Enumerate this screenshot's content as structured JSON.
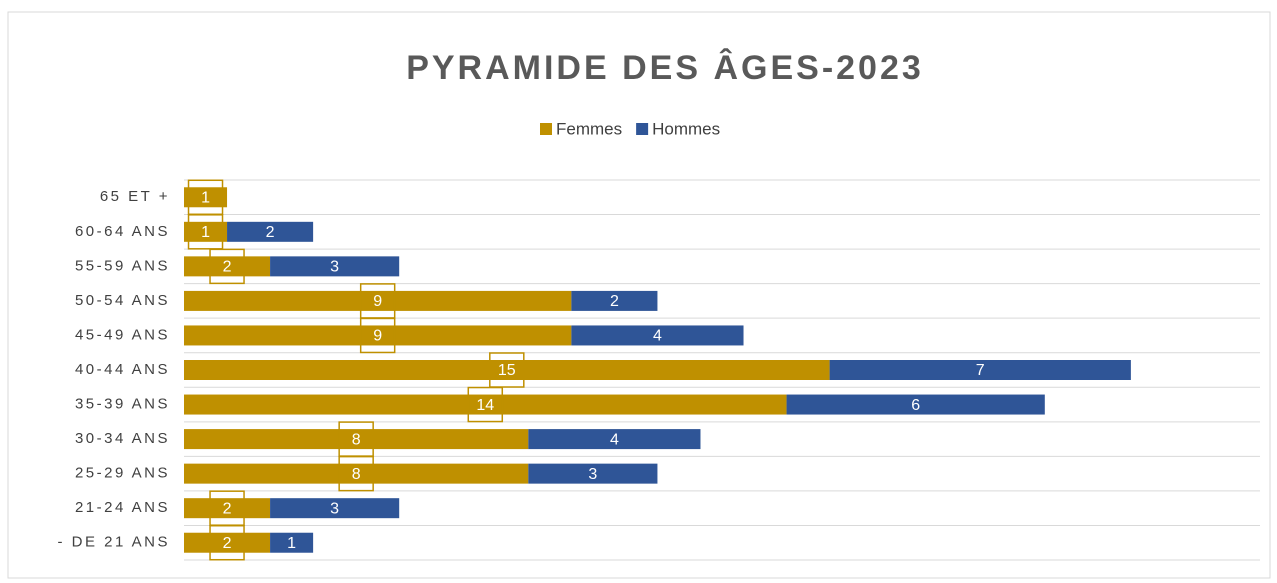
{
  "chart_data": {
    "type": "stacked_barh",
    "title": "PYRAMIDE DES ÂGES-2023",
    "categories": [
      "65 ET +",
      "60-64 ANS",
      "55-59 ANS",
      "50-54 ANS",
      "45-49 ANS",
      "40-44 ANS",
      "35-39 ANS",
      "30-34 ANS",
      "25-29 ANS",
      "21-24 ANS",
      "- DE 21 ANS"
    ],
    "series": [
      {
        "name": "Femmes",
        "color": "#bf9000",
        "values": [
          1,
          1,
          2,
          9,
          9,
          15,
          14,
          8,
          8,
          2,
          2
        ]
      },
      {
        "name": "Hommes",
        "color": "#2f5597",
        "values": [
          null,
          2,
          3,
          2,
          4,
          7,
          6,
          4,
          3,
          3,
          1
        ]
      }
    ],
    "xlim": [
      0,
      25
    ],
    "grid": true,
    "legend": "top"
  }
}
